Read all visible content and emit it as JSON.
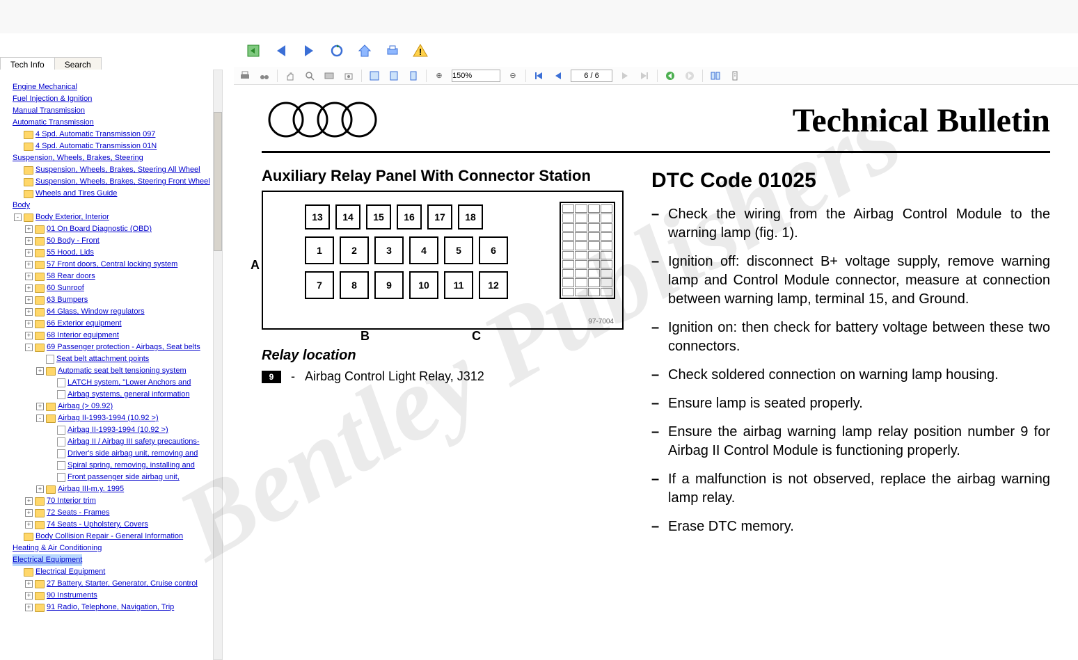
{
  "tabs": {
    "techinfo": "Tech Info",
    "search": "Search"
  },
  "watermark": "Bentley Publishers",
  "topnav_icons": [
    "back-doc",
    "arrow-left",
    "arrow-right",
    "refresh",
    "home",
    "print",
    "warning"
  ],
  "doctoolbar": {
    "zoom": "150%",
    "page": "6 / 6"
  },
  "tree": [
    {
      "ind": 0,
      "icon": "none",
      "label": "",
      "exp": ""
    },
    {
      "ind": 0,
      "icon": "link",
      "label": "Engine Mechanical",
      "exp": ""
    },
    {
      "ind": 0,
      "icon": "link",
      "label": "Fuel Injection & Ignition",
      "exp": ""
    },
    {
      "ind": 0,
      "icon": "link",
      "label": "Manual Transmission",
      "exp": ""
    },
    {
      "ind": 0,
      "icon": "link",
      "label": "Automatic Transmission",
      "exp": ""
    },
    {
      "ind": 1,
      "icon": "folder",
      "label": "4 Spd. Automatic Transmission 097",
      "exp": ""
    },
    {
      "ind": 1,
      "icon": "folder",
      "label": "4 Spd. Automatic Transmission 01N",
      "exp": ""
    },
    {
      "ind": 0,
      "icon": "link",
      "label": "Suspension, Wheels, Brakes, Steering",
      "exp": ""
    },
    {
      "ind": 1,
      "icon": "folder",
      "label": "Suspension, Wheels, Brakes, Steering All Wheel",
      "exp": ""
    },
    {
      "ind": 1,
      "icon": "folder",
      "label": "Suspension, Wheels, Brakes, Steering Front Wheel",
      "exp": ""
    },
    {
      "ind": 1,
      "icon": "folder",
      "label": "Wheels and Tires Guide",
      "exp": ""
    },
    {
      "ind": 0,
      "icon": "link",
      "label": "Body",
      "exp": ""
    },
    {
      "ind": 1,
      "icon": "folder",
      "label": "Body Exterior, Interior",
      "exp": "-"
    },
    {
      "ind": 2,
      "icon": "folder",
      "label": "01 On Board Diagnostic (OBD)",
      "exp": "+"
    },
    {
      "ind": 2,
      "icon": "folder",
      "label": "50 Body - Front",
      "exp": "+"
    },
    {
      "ind": 2,
      "icon": "folder",
      "label": "55 Hood, Lids",
      "exp": "+"
    },
    {
      "ind": 2,
      "icon": "folder",
      "label": "57 Front doors, Central locking system",
      "exp": "+"
    },
    {
      "ind": 2,
      "icon": "folder",
      "label": "58 Rear doors",
      "exp": "+"
    },
    {
      "ind": 2,
      "icon": "folder",
      "label": "60 Sunroof",
      "exp": "+"
    },
    {
      "ind": 2,
      "icon": "folder",
      "label": "63 Bumpers",
      "exp": "+"
    },
    {
      "ind": 2,
      "icon": "folder",
      "label": "64 Glass, Window regulators",
      "exp": "+"
    },
    {
      "ind": 2,
      "icon": "folder",
      "label": "66 Exterior equipment",
      "exp": "+"
    },
    {
      "ind": 2,
      "icon": "folder",
      "label": "68 Interior equipment",
      "exp": "+"
    },
    {
      "ind": 2,
      "icon": "folder",
      "label": "69 Passenger protection - Airbags, Seat belts",
      "exp": "-"
    },
    {
      "ind": 3,
      "icon": "page",
      "label": "Seat belt attachment points",
      "exp": ""
    },
    {
      "ind": 3,
      "icon": "folder",
      "label": "Automatic seat belt tensioning system",
      "exp": "+"
    },
    {
      "ind": 4,
      "icon": "page",
      "label": "LATCH system, \"Lower Anchors and",
      "exp": ""
    },
    {
      "ind": 4,
      "icon": "page",
      "label": "Airbag systems, general information",
      "exp": ""
    },
    {
      "ind": 3,
      "icon": "folder",
      "label": "Airbag (> 09.92)",
      "exp": "+"
    },
    {
      "ind": 3,
      "icon": "folder",
      "label": "Airbag II-1993-1994 (10.92 >)",
      "exp": "-"
    },
    {
      "ind": 4,
      "icon": "page",
      "label": "Airbag II-1993-1994 (10.92 >)",
      "exp": ""
    },
    {
      "ind": 4,
      "icon": "page",
      "label": "Airbag II / Airbag III safety precautions-",
      "exp": ""
    },
    {
      "ind": 4,
      "icon": "page",
      "label": "Driver's side airbag unit, removing and",
      "exp": ""
    },
    {
      "ind": 4,
      "icon": "page",
      "label": "Spiral spring, removing, installing and",
      "exp": ""
    },
    {
      "ind": 4,
      "icon": "page",
      "label": "Front passenger side airbag unit,",
      "exp": ""
    },
    {
      "ind": 3,
      "icon": "folder",
      "label": "Airbag III-m.y. 1995",
      "exp": "+"
    },
    {
      "ind": 2,
      "icon": "folder",
      "label": "70 Interior trim",
      "exp": "+"
    },
    {
      "ind": 2,
      "icon": "folder",
      "label": "72 Seats - Frames",
      "exp": "+"
    },
    {
      "ind": 2,
      "icon": "folder",
      "label": "74 Seats - Upholstery, Covers",
      "exp": "+"
    },
    {
      "ind": 1,
      "icon": "folder",
      "label": "Body Collision Repair - General Information",
      "exp": ""
    },
    {
      "ind": 0,
      "icon": "link",
      "label": "Heating & Air Conditioning",
      "exp": ""
    },
    {
      "ind": 0,
      "icon": "link",
      "label": "Electrical Equipment",
      "exp": "",
      "hl": true
    },
    {
      "ind": 1,
      "icon": "folder",
      "label": "Electrical Equipment",
      "exp": ""
    },
    {
      "ind": 2,
      "icon": "folder",
      "label": "27 Battery, Starter, Generator, Cruise control",
      "exp": "+"
    },
    {
      "ind": 2,
      "icon": "folder",
      "label": "90 Instruments",
      "exp": "+"
    },
    {
      "ind": 2,
      "icon": "folder",
      "label": "91 Radio, Telephone, Navigation, Trip",
      "exp": "+"
    }
  ],
  "document": {
    "title": "Technical Bulletin",
    "panel_title": "Auxiliary Relay Panel With Connector Station",
    "relay_rows": [
      [
        "13",
        "14",
        "15",
        "16",
        "17",
        "18"
      ],
      [
        "1",
        "2",
        "3",
        "4",
        "5",
        "6"
      ],
      [
        "7",
        "8",
        "9",
        "10",
        "11",
        "12"
      ]
    ],
    "side_labels": {
      "A": "A",
      "B": "B",
      "C": "C"
    },
    "fig_ref": "97-7004",
    "relay_loc_title": "Relay location",
    "relay_item_num": "9",
    "relay_item_text": "Airbag Control Light Relay, J312",
    "dtc_title": "DTC  Code 01025",
    "dtc_items": [
      "Check the wiring from the Airbag Control Module to the warning lamp (fig. 1).",
      "Ignition off: disconnect B+ voltage supply, remove warning lamp and Control Module connector, measure at connection between warning lamp, terminal 15, and Ground.",
      "Ignition on: then check for battery voltage between these two connectors.",
      "Check soldered connection on warning lamp housing.",
      "Ensure lamp is seated properly.",
      "Ensure the airbag warning lamp relay position number 9 for Airbag II Control Module is functioning properly.",
      "If a malfunction is not observed, replace the airbag warning lamp relay.",
      "Erase DTC memory."
    ]
  }
}
